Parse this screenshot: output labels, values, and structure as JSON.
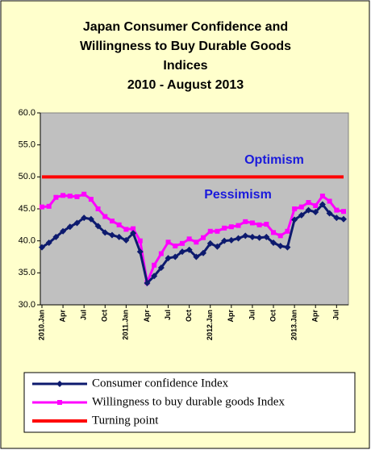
{
  "chart_data": {
    "type": "line",
    "title": [
      "Japan Consumer Confidence and",
      "Willingness to Buy Durable Goods",
      "Indices",
      "2010 -  August 2013"
    ],
    "categories": [
      "2010.Jan",
      null,
      null,
      "Apr",
      null,
      null,
      "Jul",
      null,
      null,
      "Oct",
      null,
      null,
      "2011.Jan",
      null,
      null,
      "Apr",
      null,
      null,
      "Jul",
      null,
      null,
      "Oct",
      null,
      null,
      "2012.Jan",
      null,
      null,
      "Apr",
      null,
      null,
      "Jul",
      null,
      null,
      "Oct",
      null,
      null,
      "2013.Jan",
      null,
      null,
      "Apr",
      null,
      null,
      "Jul",
      null
    ],
    "series": [
      {
        "name": "Consumer confidence Index",
        "color": "#0d1a6e",
        "marker": "diamond",
        "values": [
          39.0,
          39.7,
          40.6,
          41.5,
          42.2,
          42.8,
          43.6,
          43.4,
          42.3,
          41.3,
          40.9,
          40.6,
          40.1,
          41.2,
          38.3,
          33.4,
          34.5,
          35.8,
          37.3,
          37.5,
          38.3,
          38.6,
          37.5,
          38.1,
          39.6,
          39.1,
          40.0,
          40.1,
          40.4,
          40.8,
          40.6,
          40.5,
          40.6,
          39.7,
          39.2,
          39.0,
          43.3,
          44.0,
          44.8,
          44.5,
          45.7,
          44.3,
          43.6,
          43.4
        ]
      },
      {
        "name": "Willingness to buy durable goods Index",
        "color": "#ff00ff",
        "marker": "square",
        "values": [
          45.3,
          45.4,
          46.8,
          47.1,
          47.0,
          46.9,
          47.3,
          46.5,
          45.0,
          43.8,
          43.1,
          42.5,
          41.8,
          41.9,
          40.0,
          33.5,
          36.2,
          38.0,
          39.8,
          39.2,
          39.6,
          40.3,
          39.8,
          40.5,
          41.5,
          41.5,
          42.0,
          42.2,
          42.4,
          43.0,
          42.8,
          42.5,
          42.6,
          41.3,
          40.8,
          41.5,
          45.0,
          45.3,
          46.0,
          45.5,
          47.0,
          46.2,
          44.8,
          44.6
        ]
      },
      {
        "name": "Turning point",
        "color": "#ff0000",
        "marker": "none",
        "values": [
          50,
          50,
          50,
          50,
          50,
          50,
          50,
          50,
          50,
          50,
          50,
          50,
          50,
          50,
          50,
          50,
          50,
          50,
          50,
          50,
          50,
          50,
          50,
          50,
          50,
          50,
          50,
          50,
          50,
          50,
          50,
          50,
          50,
          50,
          50,
          50,
          50,
          50,
          50,
          50,
          50,
          50,
          50,
          50
        ]
      }
    ],
    "annotations": [
      "Optimism",
      "Pessimism"
    ],
    "ylim": [
      30,
      60
    ],
    "yticks": [
      {
        "value": 30,
        "label": "30.0"
      },
      {
        "value": 35,
        "label": "35.0"
      },
      {
        "value": 40,
        "label": "40.0"
      },
      {
        "value": 45,
        "label": "45.0"
      },
      {
        "value": 50,
        "label": "50.0"
      },
      {
        "value": 55,
        "label": "55.0"
      },
      {
        "value": 60,
        "label": "60.0"
      }
    ],
    "plot_background": "#c0c0c0",
    "page_background": "#ffffcc",
    "grid": false
  }
}
